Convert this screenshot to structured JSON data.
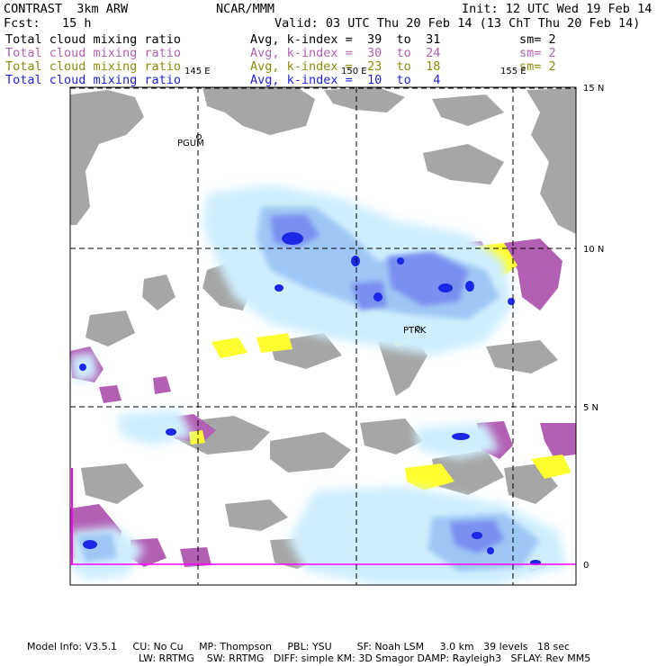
{
  "header": {
    "model": "CONTRAST  3km ARW",
    "org": "NCAR/MMM",
    "init": "Init: 12 UTC Wed 19 Feb 14",
    "fcst": "Fcst:   15 h",
    "valid": "Valid: 03 UTC Thu 20 Feb 14 (13 ChT Thu 20 Feb 14)"
  },
  "legend": [
    {
      "field": "Total cloud mixing ratio",
      "index": "Avg, k-index =  39  to  31",
      "sm": "sm= 2",
      "color": "#000000"
    },
    {
      "field": "Total cloud mixing ratio",
      "index": "Avg, k-index =  30  to  24",
      "sm": "sm= 2",
      "color": "#b25fb4"
    },
    {
      "field": "Total cloud mixing ratio",
      "index": "Avg, k-index =  23  to  18",
      "sm": "sm= 2",
      "color": "#8c8c0a"
    },
    {
      "field": "Total cloud mixing ratio",
      "index": "Avg, k-index =  10  to   4",
      "sm": "",
      "color": "#1f1fdc"
    }
  ],
  "map": {
    "lon_labels": [
      "145 E",
      "150 E",
      "155 E"
    ],
    "lat_labels": [
      "15 N",
      "10 N",
      "5 N",
      "0"
    ],
    "stations": [
      "PGUM",
      "PTKK"
    ],
    "colors": {
      "land": "#a6a6a6",
      "low_cloud": "#b25fb4",
      "mid_cloud": "#ffff30",
      "high_cloud_light": "#cfeefd",
      "high_cloud_mid": "#9ec7f5",
      "high_cloud_dark": "#7a8ff0",
      "high_cloud_core": "#1a27e6"
    }
  },
  "footer": {
    "line1": "Model Info: V3.5.1     CU: No Cu     MP: Thompson     PBL: YSU        SF: Noah LSM     3.0 km   39 levels   18 sec",
    "line2": "LW: RRTMG    SW: RRTMG   DIFF: simple KM: 3D Smagor DAMP: Rayleigh3   SFLAY: Rev MM5"
  }
}
